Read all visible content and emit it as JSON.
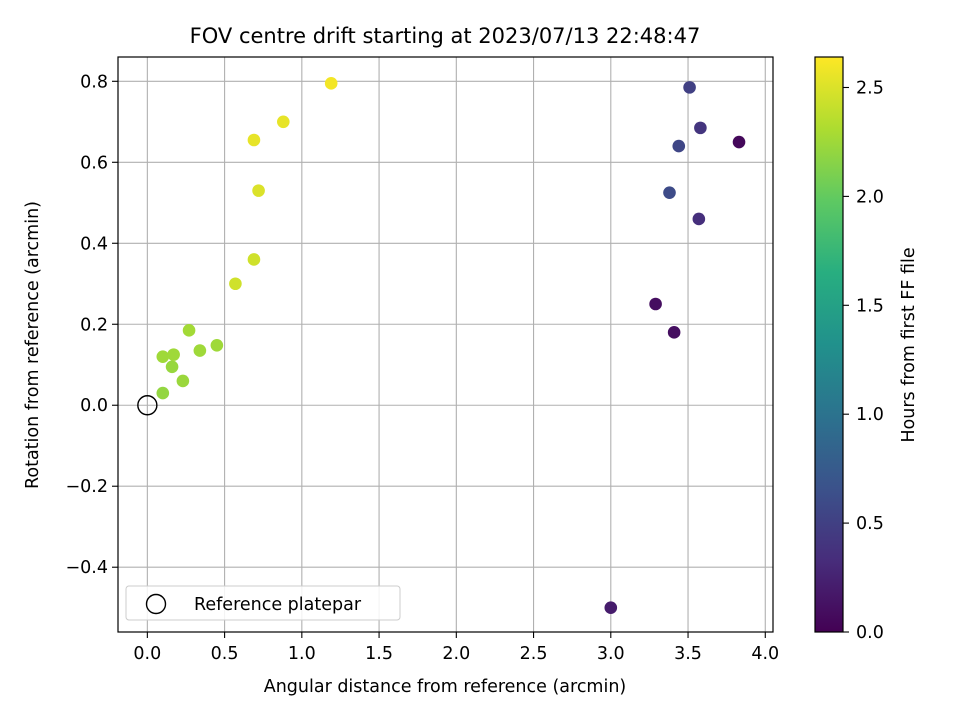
{
  "chart_data": {
    "type": "scatter",
    "title": "FOV centre drift starting at 2023/07/13 22:48:47",
    "xlabel": "Angular distance from reference (arcmin)",
    "ylabel": "Rotation from reference (arcmin)",
    "xlim": [
      -0.19,
      4.05
    ],
    "ylim": [
      -0.56,
      0.86
    ],
    "xticks": [
      0.0,
      0.5,
      1.0,
      1.5,
      2.0,
      2.5,
      3.0,
      3.5,
      4.0
    ],
    "xtick_labels": [
      "0.0",
      "0.5",
      "1.0",
      "1.5",
      "2.0",
      "2.5",
      "3.0",
      "3.5",
      "4.0"
    ],
    "yticks": [
      -0.4,
      -0.2,
      0.0,
      0.2,
      0.4,
      0.6,
      0.8
    ],
    "ytick_labels": [
      "−0.4",
      "−0.2",
      "0.0",
      "0.2",
      "0.4",
      "0.6",
      "0.8"
    ],
    "grid": true,
    "legend_position": "lower-left",
    "series": [
      {
        "name": "",
        "colormap": "viridis",
        "points": [
          {
            "x": 3.83,
            "y": 0.65,
            "c": 0.05
          },
          {
            "x": 3.29,
            "y": 0.25,
            "c": 0.1
          },
          {
            "x": 3.41,
            "y": 0.18,
            "c": 0.1
          },
          {
            "x": 3.0,
            "y": -0.5,
            "c": 0.2
          },
          {
            "x": 3.57,
            "y": 0.46,
            "c": 0.35
          },
          {
            "x": 3.58,
            "y": 0.685,
            "c": 0.4
          },
          {
            "x": 3.51,
            "y": 0.785,
            "c": 0.5
          },
          {
            "x": 3.44,
            "y": 0.64,
            "c": 0.55
          },
          {
            "x": 3.38,
            "y": 0.525,
            "c": 0.6
          },
          {
            "x": 0.1,
            "y": 0.03,
            "c": 2.2
          },
          {
            "x": 0.16,
            "y": 0.095,
            "c": 2.22
          },
          {
            "x": 0.1,
            "y": 0.12,
            "c": 2.25
          },
          {
            "x": 0.17,
            "y": 0.125,
            "c": 2.25
          },
          {
            "x": 0.23,
            "y": 0.06,
            "c": 2.23
          },
          {
            "x": 0.27,
            "y": 0.185,
            "c": 2.27
          },
          {
            "x": 0.34,
            "y": 0.135,
            "c": 2.25
          },
          {
            "x": 0.45,
            "y": 0.148,
            "c": 2.25
          },
          {
            "x": 0.57,
            "y": 0.3,
            "c": 2.45
          },
          {
            "x": 0.69,
            "y": 0.36,
            "c": 2.45
          },
          {
            "x": 0.72,
            "y": 0.53,
            "c": 2.5
          },
          {
            "x": 0.69,
            "y": 0.655,
            "c": 2.55
          },
          {
            "x": 0.88,
            "y": 0.7,
            "c": 2.55
          },
          {
            "x": 1.19,
            "y": 0.795,
            "c": 2.6
          }
        ]
      }
    ],
    "reference_point": {
      "x": 0.0,
      "y": 0.0
    },
    "legend": {
      "label": "Reference platepar"
    },
    "colorbar": {
      "label": "Hours from first FF file",
      "min": 0.0,
      "max": 2.64,
      "ticks": [
        0.0,
        0.5,
        1.0,
        1.5,
        2.0,
        2.5
      ],
      "tick_labels": [
        "0.0",
        "0.5",
        "1.0",
        "1.5",
        "2.0",
        "2.5"
      ]
    }
  }
}
